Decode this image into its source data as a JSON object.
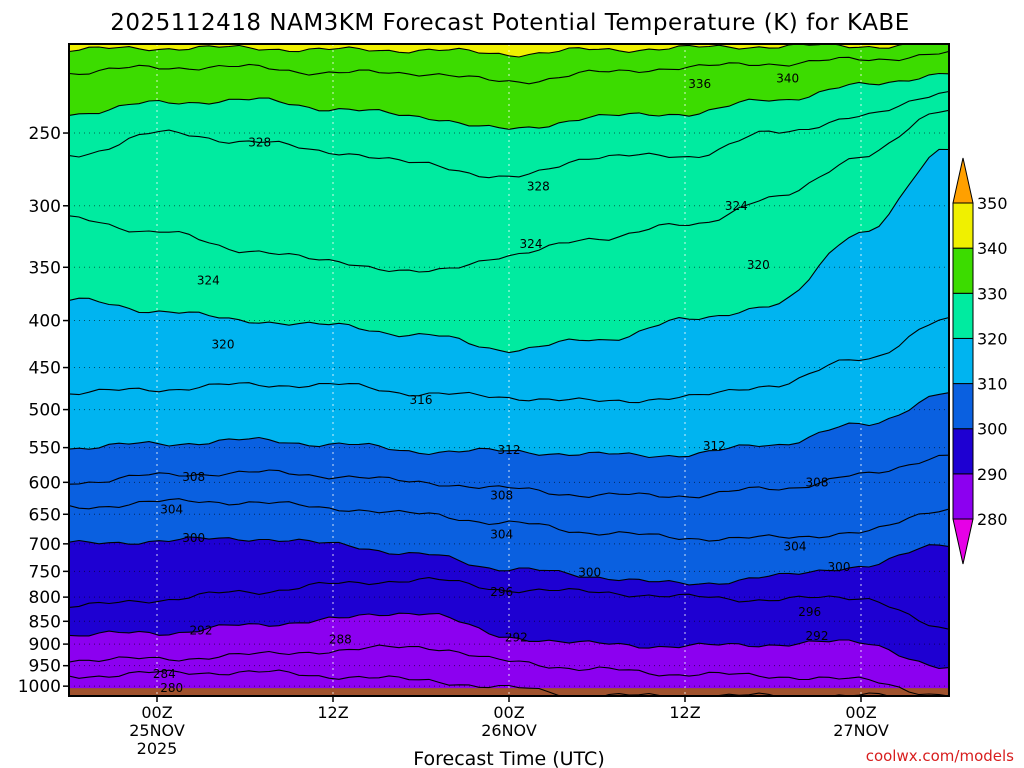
{
  "chart_data": {
    "type": "heatmap",
    "subtype": "filled-contour time-height cross-section",
    "title": "2025112418 NAM3KM Forecast Potential Temperature (K) for KABE",
    "xlabel": "Forecast Time (UTC)",
    "ylabel": "",
    "credit": "coolwx.com/models",
    "y_axis": {
      "scale": "log-pressure",
      "inverted": true,
      "range": [
        1025,
        200
      ],
      "ticks": [
        "250",
        "300",
        "350",
        "400",
        "450",
        "500",
        "550",
        "600",
        "650",
        "700",
        "750",
        "800",
        "850",
        "900",
        "950",
        "1000"
      ],
      "tick_values": [
        250,
        300,
        350,
        400,
        450,
        500,
        550,
        600,
        650,
        700,
        750,
        800,
        850,
        900,
        950,
        1000
      ]
    },
    "x_axis": {
      "unit": "forecast hour from 2025-11-24 18Z",
      "range": [
        0,
        60
      ],
      "ticks": [
        {
          "hour": 6,
          "line1": "00Z",
          "line2": "25NOV",
          "line3": "2025"
        },
        {
          "hour": 18,
          "line1": "12Z",
          "line2": "",
          "line3": ""
        },
        {
          "hour": 30,
          "line1": "00Z",
          "line2": "26NOV",
          "line3": ""
        },
        {
          "hour": 42,
          "line1": "12Z",
          "line2": "",
          "line3": ""
        },
        {
          "hour": 54,
          "line1": "00Z",
          "line2": "27NOV",
          "line3": ""
        }
      ]
    },
    "grid": true,
    "colorbar": {
      "placement": "right",
      "extend": "both",
      "levels": [
        280,
        290,
        300,
        310,
        320,
        330,
        340,
        350
      ],
      "labels": [
        "280",
        "290",
        "300",
        "310",
        "320",
        "330",
        "340",
        "350"
      ],
      "colors": [
        "#8c00f0",
        "#1e00d2",
        "#0a60e0",
        "#00b4f0",
        "#00eba0",
        "#3cdc00",
        "#f0f000"
      ],
      "under_color": "#e600e6",
      "over_color": "#ffa000"
    },
    "time_hours": [
      0,
      6,
      12,
      18,
      24,
      30,
      36,
      42,
      48,
      54,
      60
    ],
    "isentropes": [
      {
        "theta": 284,
        "p": [
          975,
          968,
          965,
          975,
          985,
          1005,
          1025,
          1025,
          1025,
          1025,
          1025
        ]
      },
      {
        "theta": 288,
        "p": [
          935,
          935,
          925,
          915,
          905,
          940,
          960,
          970,
          975,
          985,
          1025
        ]
      },
      {
        "theta": 292,
        "p": [
          880,
          875,
          860,
          845,
          830,
          885,
          900,
          905,
          900,
          895,
          960
        ]
      },
      {
        "theta": 296,
        "p": [
          820,
          805,
          790,
          775,
          765,
          785,
          790,
          800,
          805,
          800,
          870
        ]
      },
      {
        "theta": 300,
        "p": [
          700,
          695,
          690,
          700,
          720,
          745,
          760,
          775,
          760,
          740,
          700
        ]
      },
      {
        "theta": 304,
        "p": [
          640,
          630,
          630,
          640,
          650,
          665,
          680,
          690,
          690,
          680,
          640
        ]
      },
      {
        "theta": 308,
        "p": [
          600,
          590,
          585,
          590,
          600,
          610,
          620,
          620,
          610,
          590,
          560
        ]
      },
      {
        "theta": 312,
        "p": [
          550,
          545,
          540,
          545,
          555,
          555,
          560,
          560,
          545,
          520,
          480
        ]
      },
      {
        "theta": 316,
        "p": [
          480,
          475,
          470,
          470,
          480,
          485,
          490,
          485,
          470,
          440,
          400
        ]
      },
      {
        "theta": 320,
        "p": [
          380,
          390,
          400,
          405,
          415,
          430,
          420,
          400,
          385,
          320,
          260
        ]
      },
      {
        "theta": 324,
        "p": [
          310,
          320,
          335,
          345,
          355,
          340,
          325,
          315,
          295,
          265,
          235
        ]
      },
      {
        "theta": 328,
        "p": [
          265,
          250,
          255,
          262,
          270,
          280,
          265,
          265,
          250,
          240,
          225
        ]
      },
      {
        "theta": 332,
        "p": [
          238,
          232,
          230,
          235,
          240,
          248,
          240,
          238,
          230,
          222,
          215
        ]
      },
      {
        "theta": 336,
        "p": [
          215,
          212,
          212,
          215,
          215,
          220,
          215,
          212,
          210,
          208,
          205
        ]
      },
      {
        "theta": 340,
        "p": [
          203,
          202,
          202,
          203,
          203,
          205,
          203,
          202,
          201,
          201,
          200
        ]
      }
    ],
    "contour_labels": [
      {
        "text": "280",
        "hour": 7.0,
        "p": 1005
      },
      {
        "text": "284",
        "hour": 6.5,
        "p": 970
      },
      {
        "text": "288",
        "hour": 18.5,
        "p": 890
      },
      {
        "text": "292",
        "hour": 9.0,
        "p": 870
      },
      {
        "text": "292",
        "hour": 30.5,
        "p": 885
      },
      {
        "text": "292",
        "hour": 51.0,
        "p": 882
      },
      {
        "text": "296",
        "hour": 29.5,
        "p": 790
      },
      {
        "text": "296",
        "hour": 50.5,
        "p": 830
      },
      {
        "text": "300",
        "hour": 8.5,
        "p": 690
      },
      {
        "text": "300",
        "hour": 35.5,
        "p": 752
      },
      {
        "text": "300",
        "hour": 52.5,
        "p": 742
      },
      {
        "text": "304",
        "hour": 7.0,
        "p": 642
      },
      {
        "text": "304",
        "hour": 29.5,
        "p": 684
      },
      {
        "text": "304",
        "hour": 49.5,
        "p": 705
      },
      {
        "text": "308",
        "hour": 8.5,
        "p": 592
      },
      {
        "text": "308",
        "hour": 29.5,
        "p": 620
      },
      {
        "text": "308",
        "hour": 51.0,
        "p": 600
      },
      {
        "text": "312",
        "hour": 30.0,
        "p": 553
      },
      {
        "text": "312",
        "hour": 44.0,
        "p": 548
      },
      {
        "text": "316",
        "hour": 24.0,
        "p": 488
      },
      {
        "text": "320",
        "hour": 10.5,
        "p": 425
      },
      {
        "text": "320",
        "hour": 47.0,
        "p": 348
      },
      {
        "text": "324",
        "hour": 9.5,
        "p": 362
      },
      {
        "text": "324",
        "hour": 31.5,
        "p": 330
      },
      {
        "text": "324",
        "hour": 45.5,
        "p": 300
      },
      {
        "text": "328",
        "hour": 13.0,
        "p": 256
      },
      {
        "text": "328",
        "hour": 32.0,
        "p": 286
      },
      {
        "text": "336",
        "hour": 43.0,
        "p": 221
      },
      {
        "text": "340",
        "hour": 49.0,
        "p": 218
      }
    ]
  }
}
